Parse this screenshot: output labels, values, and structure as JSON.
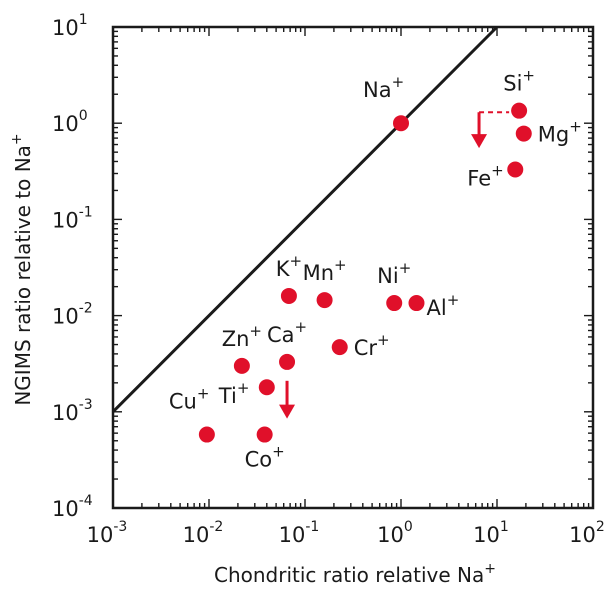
{
  "chart_data": {
    "type": "scatter",
    "title": "",
    "xlabel": "Chondritic ratio relative  Na",
    "xlabel_sup": "+",
    "ylabel": "NGIMS ratio relative to Na",
    "ylabel_sup": "+",
    "xscale": "log",
    "yscale": "log",
    "xlim": [
      0.001,
      100
    ],
    "ylim": [
      0.0001,
      10
    ],
    "grid": false,
    "x_ticks": [
      0.001,
      0.01,
      0.1,
      1,
      10,
      100
    ],
    "x_tick_labels": [
      {
        "base": "10",
        "exp": "-3"
      },
      {
        "base": "10",
        "exp": "-2"
      },
      {
        "base": "10",
        "exp": "-1"
      },
      {
        "base": "10",
        "exp": "0"
      },
      {
        "base": "10",
        "exp": "1"
      },
      {
        "base": "10",
        "exp": "2"
      }
    ],
    "y_ticks": [
      0.0001,
      0.001,
      0.01,
      0.1,
      1,
      10
    ],
    "y_tick_labels": [
      {
        "base": "10",
        "exp": "-4"
      },
      {
        "base": "10",
        "exp": "-3"
      },
      {
        "base": "10",
        "exp": "-2"
      },
      {
        "base": "10",
        "exp": "-1"
      },
      {
        "base": "10",
        "exp": "0"
      },
      {
        "base": "10",
        "exp": "1"
      }
    ],
    "reference_line": {
      "x": [
        0.001,
        10
      ],
      "y": [
        0.001,
        10
      ],
      "color": "#1a1a1a"
    },
    "marker_color": "#e0102a",
    "points": [
      {
        "element": "Na",
        "charge": "+",
        "x": 1.0,
        "y": 1.0,
        "label_pos": "upper-left"
      },
      {
        "element": "Si",
        "charge": "+",
        "x": 17,
        "y": 1.35,
        "label_pos": "above"
      },
      {
        "element": "Mg",
        "charge": "+",
        "x": 19,
        "y": 0.78,
        "label_pos": "right"
      },
      {
        "element": "Fe",
        "charge": "+",
        "x": 15.5,
        "y": 0.33,
        "label_pos": "left"
      },
      {
        "element": "K",
        "charge": "+",
        "x": 0.068,
        "y": 0.016,
        "label_pos": "above"
      },
      {
        "element": "Mn",
        "charge": "+",
        "x": 0.16,
        "y": 0.0145,
        "label_pos": "above"
      },
      {
        "element": "Ni",
        "charge": "+",
        "x": 0.85,
        "y": 0.0135,
        "label_pos": "above"
      },
      {
        "element": "Al",
        "charge": "+",
        "x": 1.45,
        "y": 0.0135,
        "label_pos": "lower-right"
      },
      {
        "element": "Cr",
        "charge": "+",
        "x": 0.23,
        "y": 0.0047,
        "label_pos": "right"
      },
      {
        "element": "Ca",
        "charge": "+",
        "x": 0.065,
        "y": 0.0033,
        "label_pos": "above"
      },
      {
        "element": "Zn",
        "charge": "+",
        "x": 0.022,
        "y": 0.003,
        "label_pos": "above"
      },
      {
        "element": "Ti",
        "charge": "+",
        "x": 0.04,
        "y": 0.0018,
        "label_pos": "left"
      },
      {
        "element": "Cu",
        "charge": "+",
        "x": 0.0095,
        "y": 0.00058,
        "label_pos": "upper-left"
      },
      {
        "element": "Co",
        "charge": "+",
        "x": 0.038,
        "y": 0.00058,
        "label_pos": "below"
      }
    ],
    "upper_limit_arrows": [
      {
        "for": "Fe",
        "x": 6.5,
        "y_from": 1.3,
        "y_to": 0.55,
        "dashed_connector_to_x": 17
      },
      {
        "for": "Ca",
        "x": 0.065,
        "y_from": 0.0021,
        "y_to": 0.00085
      }
    ]
  }
}
